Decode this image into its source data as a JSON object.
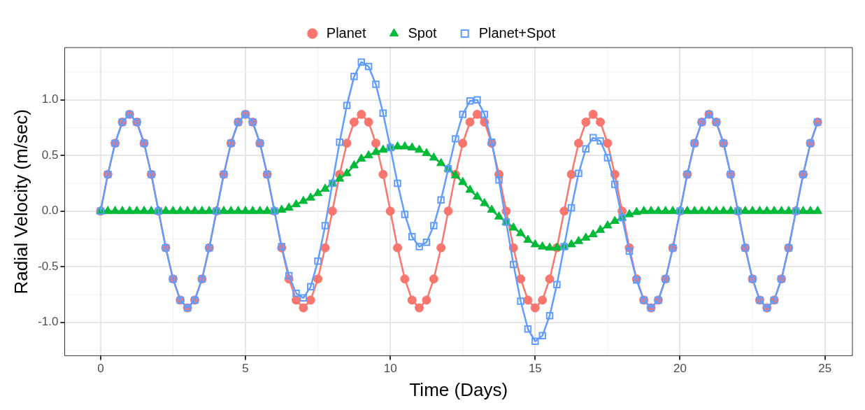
{
  "chart_data": {
    "type": "line",
    "xlabel": "Time (Days)",
    "ylabel": "Radial Velocity (m/sec)",
    "x": [
      0,
      0.25,
      0.5,
      0.75,
      1,
      1.25,
      1.5,
      1.75,
      2,
      2.25,
      2.5,
      2.75,
      3,
      3.25,
      3.5,
      3.75,
      4,
      4.25,
      4.5,
      4.75,
      5,
      5.25,
      5.5,
      5.75,
      6,
      6.25,
      6.5,
      6.75,
      7,
      7.25,
      7.5,
      7.75,
      8,
      8.25,
      8.5,
      8.75,
      9,
      9.25,
      9.5,
      9.75,
      10,
      10.25,
      10.5,
      10.75,
      11,
      11.25,
      11.5,
      11.75,
      12,
      12.25,
      12.5,
      12.75,
      13,
      13.25,
      13.5,
      13.75,
      14,
      14.25,
      14.5,
      14.75,
      15,
      15.25,
      15.5,
      15.75,
      16,
      16.25,
      16.5,
      16.75,
      17,
      17.25,
      17.5,
      17.75,
      18,
      18.25,
      18.5,
      18.75,
      19,
      19.25,
      19.5,
      19.75,
      20,
      20.25,
      20.5,
      20.75,
      21,
      21.25,
      21.5,
      21.75,
      22,
      22.25,
      22.5,
      22.75,
      23,
      23.25,
      23.5,
      23.75,
      24,
      24.25,
      24.5,
      24.75
    ],
    "series": [
      {
        "name": "Planet",
        "color": "#f8766d",
        "marker": "circle",
        "values": [
          0,
          0.33,
          0.61,
          0.8,
          0.87,
          0.8,
          0.61,
          0.33,
          0,
          -0.33,
          -0.61,
          -0.8,
          -0.87,
          -0.8,
          -0.61,
          -0.33,
          0,
          0.33,
          0.61,
          0.8,
          0.87,
          0.8,
          0.61,
          0.33,
          0,
          -0.33,
          -0.61,
          -0.8,
          -0.87,
          -0.8,
          -0.61,
          -0.33,
          0,
          0.33,
          0.61,
          0.8,
          0.87,
          0.8,
          0.61,
          0.33,
          0,
          -0.33,
          -0.61,
          -0.8,
          -0.87,
          -0.8,
          -0.61,
          -0.33,
          0,
          0.33,
          0.61,
          0.8,
          0.87,
          0.8,
          0.61,
          0.33,
          0,
          -0.33,
          -0.61,
          -0.8,
          -0.87,
          -0.8,
          -0.61,
          -0.33,
          0,
          0.33,
          0.61,
          0.8,
          0.87,
          0.8,
          0.61,
          0.33,
          0,
          -0.33,
          -0.61,
          -0.8,
          -0.87,
          -0.8,
          -0.61,
          -0.33,
          0,
          0.33,
          0.61,
          0.8,
          0.87,
          0.8,
          0.61,
          0.33,
          0,
          -0.33,
          -0.61,
          -0.8,
          -0.87,
          -0.8,
          -0.61,
          -0.33,
          0,
          0.33,
          0.61,
          0.8
        ]
      },
      {
        "name": "Spot",
        "color": "#00ba38",
        "marker": "triangle",
        "values": [
          0,
          0,
          0,
          0,
          0,
          0,
          0,
          0,
          0,
          0,
          0,
          0,
          0,
          0,
          0,
          0,
          0,
          0,
          0,
          0,
          0,
          0,
          0,
          0,
          0,
          0.01,
          0.03,
          0.06,
          0.09,
          0.12,
          0.16,
          0.2,
          0.25,
          0.29,
          0.34,
          0.41,
          0.47,
          0.5,
          0.53,
          0.55,
          0.57,
          0.58,
          0.58,
          0.57,
          0.55,
          0.52,
          0.48,
          0.43,
          0.38,
          0.32,
          0.26,
          0.19,
          0.13,
          0.07,
          0.01,
          -0.05,
          -0.1,
          -0.15,
          -0.2,
          -0.26,
          -0.3,
          -0.32,
          -0.33,
          -0.33,
          -0.32,
          -0.3,
          -0.27,
          -0.24,
          -0.21,
          -0.17,
          -0.13,
          -0.09,
          -0.06,
          -0.03,
          -0.01,
          0,
          0,
          0,
          0,
          0,
          0,
          0,
          0,
          0,
          0,
          0,
          0,
          0,
          0,
          0,
          0,
          0,
          0,
          0,
          0,
          0,
          0,
          0,
          0,
          0
        ]
      },
      {
        "name": "Planet+Spot",
        "color": "#619cff",
        "marker": "square",
        "values": [
          0,
          0.33,
          0.61,
          0.8,
          0.87,
          0.8,
          0.61,
          0.33,
          0,
          -0.33,
          -0.61,
          -0.8,
          -0.87,
          -0.8,
          -0.61,
          -0.33,
          0,
          0.33,
          0.61,
          0.8,
          0.87,
          0.8,
          0.61,
          0.33,
          0,
          -0.32,
          -0.58,
          -0.74,
          -0.78,
          -0.68,
          -0.45,
          -0.13,
          0.25,
          0.62,
          0.95,
          1.21,
          1.34,
          1.3,
          1.14,
          0.88,
          0.57,
          0.25,
          -0.03,
          -0.23,
          -0.32,
          -0.28,
          -0.13,
          0.1,
          0.38,
          0.65,
          0.87,
          0.99,
          1,
          0.87,
          0.62,
          0.28,
          -0.1,
          -0.48,
          -0.81,
          -1.06,
          -1.17,
          -1.12,
          -0.94,
          -0.66,
          -0.32,
          0.03,
          0.34,
          0.56,
          0.66,
          0.63,
          0.48,
          0.24,
          -0.06,
          -0.36,
          -0.62,
          -0.8,
          -0.87,
          -0.8,
          -0.61,
          -0.33,
          0,
          0.33,
          0.61,
          0.8,
          0.87,
          0.8,
          0.61,
          0.33,
          0,
          -0.33,
          -0.61,
          -0.8,
          -0.87,
          -0.8,
          -0.61,
          -0.33,
          0,
          0.33,
          0.61,
          0.8
        ]
      }
    ],
    "xlim": [
      -1.24,
      25.95
    ],
    "xticks": [
      0,
      5,
      10,
      15,
      20,
      25
    ],
    "ylim": [
      -1.3,
      1.47
    ],
    "yticks": [
      {
        "value": -1,
        "label": "-1.0"
      },
      {
        "value": -0.5,
        "label": "-0.5"
      },
      {
        "value": 0,
        "label": "0.0"
      },
      {
        "value": 0.5,
        "label": "0.5"
      },
      {
        "value": 1,
        "label": "1.0"
      }
    ],
    "grid": true,
    "legend": "top",
    "line_style": "solid"
  }
}
